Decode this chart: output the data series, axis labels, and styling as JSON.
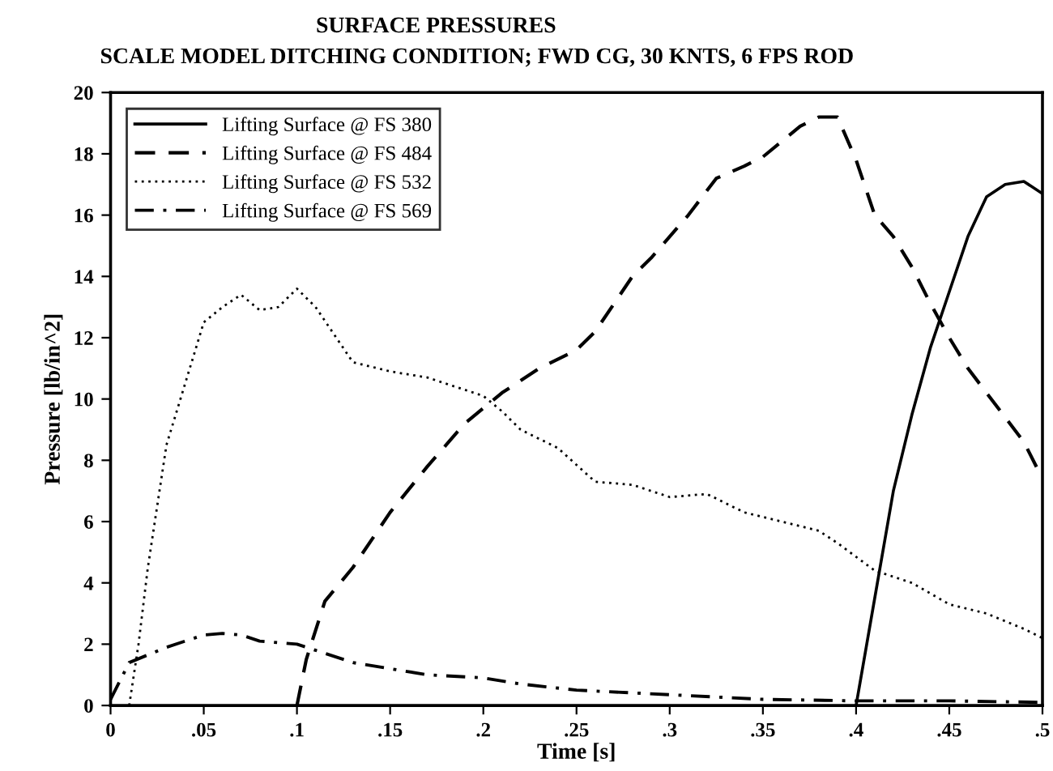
{
  "chart_data": {
    "type": "line",
    "title": "SURFACE PRESSURES",
    "subtitle": "SCALE MODEL DITCHING CONDITION; FWD CG, 30 KNTS, 6 FPS ROD",
    "xlabel": "Time [s]",
    "ylabel": "Pressure [lb/in^2]",
    "xlim": [
      0,
      0.5
    ],
    "ylim": [
      0,
      20
    ],
    "xticks": [
      0,
      {
        "value": 0.05,
        "label": ".05"
      },
      {
        "value": 0.1,
        "label": ".1"
      },
      {
        "value": 0.15,
        "label": ".15"
      },
      {
        "value": 0.2,
        "label": ".2"
      },
      {
        "value": 0.25,
        "label": ".25"
      },
      {
        "value": 0.3,
        "label": ".3"
      },
      {
        "value": 0.35,
        "label": ".35"
      },
      {
        "value": 0.4,
        "label": ".4"
      },
      {
        "value": 0.45,
        "label": ".45"
      },
      {
        "value": 0.5,
        "label": ".5"
      }
    ],
    "yticks": [
      0,
      2,
      4,
      6,
      8,
      10,
      12,
      14,
      16,
      18,
      20
    ],
    "grid": false,
    "legend": "top left",
    "marker": "none",
    "series": [
      {
        "name": "Lifting Surface @ FS 380",
        "color": "#000000",
        "line_style": "solid",
        "x": [
          0.4,
          0.41,
          0.42,
          0.43,
          0.44,
          0.45,
          0.46,
          0.47,
          0.48,
          0.49,
          0.5
        ],
        "values": [
          0,
          3.5,
          7,
          9.5,
          11.7,
          13.5,
          15.3,
          16.6,
          17.0,
          17.1,
          16.7
        ]
      },
      {
        "name": "Lifting Surface @ FS 484",
        "color": "#000000",
        "line_style": "dashed",
        "x": [
          0.1,
          0.105,
          0.115,
          0.13,
          0.15,
          0.17,
          0.19,
          0.21,
          0.23,
          0.25,
          0.26,
          0.28,
          0.29,
          0.31,
          0.325,
          0.34,
          0.35,
          0.37,
          0.38,
          0.39,
          0.4,
          0.41,
          0.42,
          0.43,
          0.44,
          0.45,
          0.46,
          0.47,
          0.49,
          0.5
        ],
        "values": [
          0,
          1.5,
          3.4,
          4.5,
          6.3,
          7.8,
          9.2,
          10.2,
          11.0,
          11.6,
          12.2,
          14.0,
          14.6,
          16.0,
          17.2,
          17.6,
          17.9,
          18.9,
          19.2,
          19.2,
          17.8,
          16.0,
          15.3,
          14.3,
          13.1,
          12.0,
          11.0,
          10.2,
          8.6,
          7.4
        ]
      },
      {
        "name": "Lifting Surface @ FS 532",
        "color": "#000000",
        "line_style": "dotted",
        "x": [
          0.01,
          0.015,
          0.02,
          0.03,
          0.04,
          0.05,
          0.06,
          0.07,
          0.08,
          0.09,
          0.1,
          0.11,
          0.13,
          0.15,
          0.17,
          0.19,
          0.2,
          0.21,
          0.22,
          0.24,
          0.26,
          0.28,
          0.3,
          0.32,
          0.34,
          0.36,
          0.38,
          0.39,
          0.41,
          0.43,
          0.45,
          0.47,
          0.49,
          0.5
        ],
        "values": [
          0,
          2,
          4.5,
          8.5,
          10.5,
          12.5,
          13.0,
          13.4,
          12.9,
          13.0,
          13.6,
          13.0,
          11.2,
          10.9,
          10.7,
          10.3,
          10.1,
          9.6,
          9.0,
          8.4,
          7.3,
          7.2,
          6.8,
          6.9,
          6.3,
          6.0,
          5.7,
          5.3,
          4.4,
          4.0,
          3.3,
          3.0,
          2.5,
          2.2
        ]
      },
      {
        "name": "Lifting Surface @ FS 569",
        "color": "#000000",
        "line_style": "dashdot",
        "x": [
          0,
          0.01,
          0.03,
          0.05,
          0.06,
          0.07,
          0.08,
          0.1,
          0.11,
          0.13,
          0.15,
          0.17,
          0.2,
          0.22,
          0.25,
          0.3,
          0.35,
          0.4,
          0.45,
          0.5
        ],
        "values": [
          0.2,
          1.4,
          1.9,
          2.3,
          2.35,
          2.3,
          2.1,
          2.0,
          1.8,
          1.4,
          1.2,
          1.0,
          0.9,
          0.7,
          0.5,
          0.35,
          0.2,
          0.15,
          0.15,
          0.1
        ]
      }
    ]
  }
}
